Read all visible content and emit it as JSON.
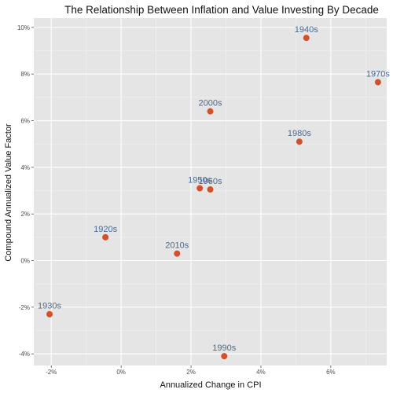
{
  "chart_data": {
    "type": "scatter",
    "title": "The Relationship Between Inflation and Value Investing By Decade",
    "xlabel": "Annualized Change in CPI",
    "ylabel": "Compound Annualized Value Factor",
    "xlim": [
      -2.5,
      7.6
    ],
    "ylim": [
      -4.5,
      10.4
    ],
    "x_ticks": [
      -2,
      0,
      2,
      4,
      6
    ],
    "x_tick_labels": [
      "-2%",
      "0%",
      "2%",
      "4%",
      "6%"
    ],
    "y_ticks": [
      -4,
      -2,
      0,
      2,
      4,
      6,
      8,
      10
    ],
    "y_tick_labels": [
      "-4%",
      "-2%",
      "0%",
      "2%",
      "4%",
      "6%",
      "8%",
      "10%"
    ],
    "grid": true,
    "legend": "none",
    "point_color": "#d4502b",
    "label_color": "#4a6a92",
    "panel_background": "#e5e5e5",
    "points": [
      {
        "label": "1920s",
        "x": -0.45,
        "y": 1.0
      },
      {
        "label": "1930s",
        "x": -2.05,
        "y": -2.3
      },
      {
        "label": "1940s",
        "x": 5.3,
        "y": 9.55
      },
      {
        "label": "1950s",
        "x": 2.25,
        "y": 3.1
      },
      {
        "label": "1960s",
        "x": 2.55,
        "y": 3.05
      },
      {
        "label": "1970s",
        "x": 7.35,
        "y": 7.65
      },
      {
        "label": "1980s",
        "x": 5.1,
        "y": 5.1
      },
      {
        "label": "1990s",
        "x": 2.95,
        "y": -4.1
      },
      {
        "label": "2000s",
        "x": 2.55,
        "y": 6.4
      },
      {
        "label": "2010s",
        "x": 1.6,
        "y": 0.3
      }
    ]
  }
}
